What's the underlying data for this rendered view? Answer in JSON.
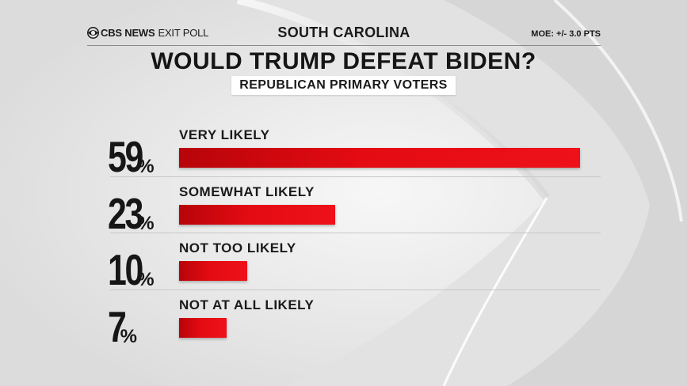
{
  "header": {
    "brand_name": "CBS NEWS",
    "brand_suffix": "EXIT POLL",
    "state": "SOUTH CAROLINA",
    "moe": "MOE: +/- 3.0 PTS"
  },
  "title": "WOULD TRUMP DEFEAT BIDEN?",
  "subtitle": "REPUBLICAN PRIMARY VOTERS",
  "colors": {
    "bar": "#e40b12",
    "bar_dark": "#b7040a",
    "text": "#161616"
  },
  "chart_data": {
    "type": "bar",
    "orientation": "horizontal",
    "title": "WOULD TRUMP DEFEAT BIDEN?",
    "subtitle": "REPUBLICAN PRIMARY VOTERS",
    "categories": [
      "VERY LIKELY",
      "SOMEWHAT LIKELY",
      "NOT TOO LIKELY",
      "NOT AT ALL LIKELY"
    ],
    "values": [
      59,
      23,
      10,
      7
    ],
    "value_suffix": "%",
    "xlabel": "",
    "ylabel": "",
    "xlim": [
      0,
      59
    ],
    "grid": false,
    "legend": "none"
  }
}
